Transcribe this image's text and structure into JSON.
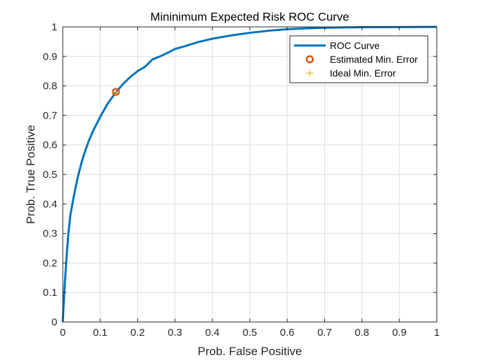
{
  "chart_data": {
    "type": "line",
    "title": "Mininimum Expected Risk ROC Curve",
    "xlabel": "Prob. False Positive",
    "ylabel": "Prob. True Positive",
    "xlim": [
      0,
      1
    ],
    "ylim": [
      0,
      1
    ],
    "grid": true,
    "legend_position": "top-right",
    "x_ticks": [
      "0",
      "0.1",
      "0.2",
      "0.3",
      "0.4",
      "0.5",
      "0.6",
      "0.7",
      "0.8",
      "0.9",
      "1"
    ],
    "y_ticks": [
      "0",
      "0.1",
      "0.2",
      "0.3",
      "0.4",
      "0.5",
      "0.6",
      "0.7",
      "0.8",
      "0.9",
      "1"
    ],
    "series": [
      {
        "name": "ROC Curve",
        "color": "#0072BD",
        "x": [
          0,
          0.002,
          0.005,
          0.01,
          0.015,
          0.02,
          0.03,
          0.04,
          0.05,
          0.06,
          0.07,
          0.08,
          0.1,
          0.12,
          0.14,
          0.16,
          0.18,
          0.2,
          0.22,
          0.24,
          0.26,
          0.28,
          0.3,
          0.33,
          0.36,
          0.4,
          0.45,
          0.5,
          0.55,
          0.6,
          0.65,
          0.7,
          0.8,
          0.9,
          1.0
        ],
        "y": [
          0,
          0.05,
          0.12,
          0.22,
          0.3,
          0.36,
          0.43,
          0.49,
          0.54,
          0.58,
          0.615,
          0.645,
          0.695,
          0.74,
          0.775,
          0.805,
          0.83,
          0.85,
          0.865,
          0.89,
          0.9,
          0.912,
          0.925,
          0.936,
          0.948,
          0.96,
          0.971,
          0.98,
          0.987,
          0.992,
          0.995,
          0.997,
          0.999,
          0.9995,
          1.0
        ]
      },
      {
        "name": "Estimated Min. Error",
        "color": "#D95319",
        "marker": "o",
        "x": [
          0.142
        ],
        "y": [
          0.78
        ]
      },
      {
        "name": "Ideal Min. Error",
        "color": "#EDB120",
        "marker": "+",
        "x": [
          0.142
        ],
        "y": [
          0.78
        ]
      }
    ]
  }
}
